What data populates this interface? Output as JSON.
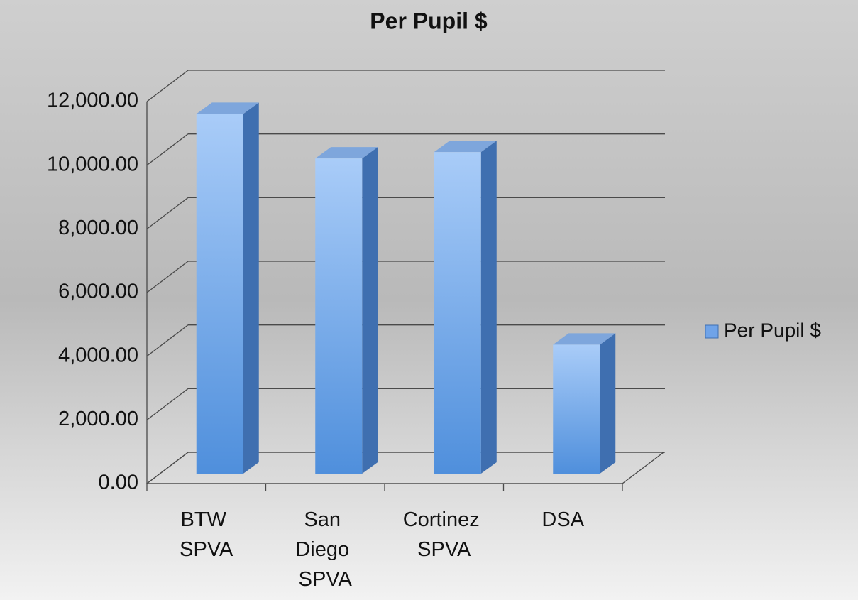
{
  "chart_data": {
    "type": "bar3d",
    "title": "Per Pupil $",
    "categories": [
      "BTW SPVA",
      "San Diego SPVA",
      "Cortinez SPVA",
      "DSA"
    ],
    "series": [
      {
        "name": "Per Pupil $",
        "color": "#6fa3e8",
        "values": [
          11300,
          9900,
          10100,
          4050
        ]
      }
    ],
    "ylim": [
      0,
      12000
    ],
    "yticks": [
      {
        "value": 0,
        "label": "0.00"
      },
      {
        "value": 2000,
        "label": "2,000.00"
      },
      {
        "value": 4000,
        "label": "4,000.00"
      },
      {
        "value": 6000,
        "label": "6,000.00"
      },
      {
        "value": 8000,
        "label": "8,000.00"
      },
      {
        "value": 10000,
        "label": "10,000.00"
      },
      {
        "value": 12000,
        "label": "12,000.00"
      }
    ],
    "grid": true,
    "legend": "right"
  }
}
